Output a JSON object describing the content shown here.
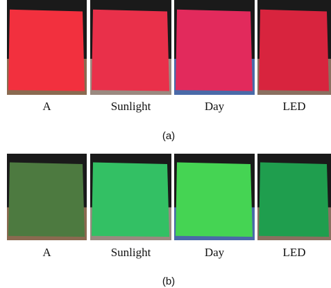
{
  "panels": [
    {
      "caption": "(a)",
      "labels": [
        "A",
        "Sunlight",
        "Day",
        "LED"
      ]
    },
    {
      "caption": "(b)",
      "labels": [
        "A",
        "Sunlight",
        "Day",
        "LED"
      ]
    }
  ]
}
